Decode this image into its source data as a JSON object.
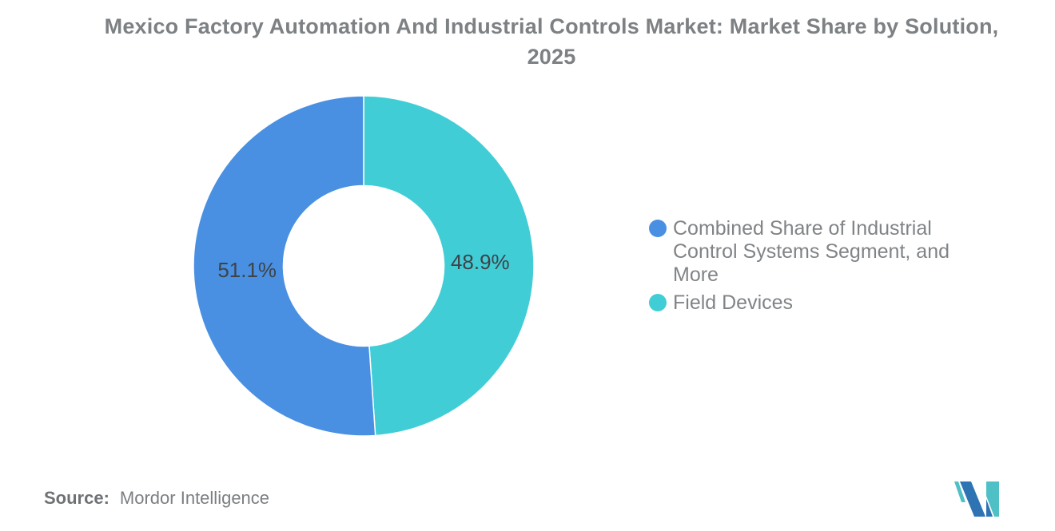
{
  "page": {
    "background": "#ffffff"
  },
  "chart_data": {
    "type": "pie",
    "subtype": "donut",
    "title": "Mexico Factory Automation And Industrial Controls Market: Market Share by Solution, 2025",
    "unit": "%",
    "slices": [
      {
        "label": "Combined Share of Industrial Control Systems Segment, and More",
        "value": 51.1,
        "display": "51.1%",
        "color": "#4A90E2"
      },
      {
        "label": "Field Devices",
        "value": 48.9,
        "display": "48.9%",
        "color": "#41CDD6"
      }
    ],
    "layout_hints": {
      "start_angle_deg": 0,
      "direction": "clockwise",
      "clockwise_order_indices": [
        1,
        0
      ],
      "inner_radius_ratio": 0.472,
      "label_radius_ratio": 0.685,
      "label_position": "inside",
      "legend_position": "right",
      "slice_border_color": "#FFFFFF",
      "grid": "off"
    }
  },
  "source": {
    "label": "Source:",
    "value": "Mordor Intelligence"
  },
  "logo": {
    "name": "Mordor Intelligence M mark",
    "blue": "#2E74B2",
    "teal": "#4FC0C6"
  }
}
